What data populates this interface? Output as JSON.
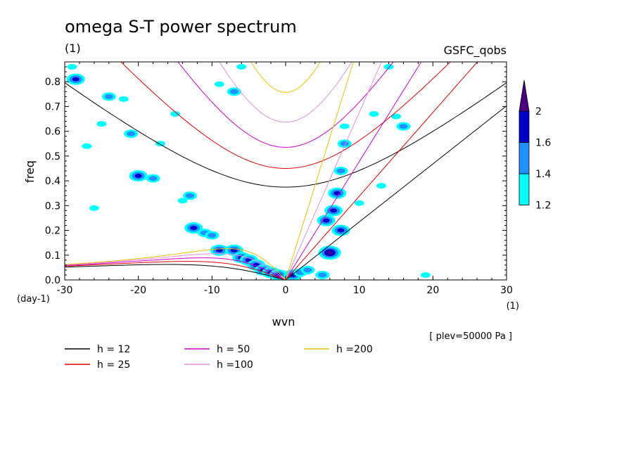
{
  "chart_data": {
    "type": "contour",
    "title": "omega S-T power spectrum",
    "subtitle": "(1)",
    "source_label": "GSFC_qobs",
    "xlabel": "wvn",
    "ylabel": "freq",
    "x_unit_label": "(1)",
    "y_unit_label": "(day-1)",
    "xlim": [
      -30,
      30
    ],
    "ylim": [
      0,
      0.88
    ],
    "x_ticks": [
      -30,
      -20,
      -10,
      0,
      10,
      20,
      30
    ],
    "x_tick_labels": [
      "-30",
      "-20",
      "-10",
      "0",
      "10",
      "20",
      "30"
    ],
    "y_ticks": [
      0,
      0.1,
      0.2,
      0.3,
      0.4,
      0.5,
      0.6,
      0.7,
      0.8
    ],
    "y_tick_labels": [
      "0.0",
      "0.1",
      "0.2",
      "0.3",
      "0.4",
      "0.5",
      "0.6",
      "0.7",
      "0.8"
    ],
    "annotation": "[ plev=50000 Pa ]",
    "colorbar": {
      "levels": [
        1.2,
        1.4,
        1.6,
        2
      ],
      "labels": [
        "1.2",
        "1.4",
        "1.6",
        "2"
      ],
      "colors": [
        "#00ffff",
        "#1e90ff",
        "#0000cd",
        "#4b0082"
      ]
    },
    "dispersion_curves": [
      {
        "label": "h = 12",
        "h": 12,
        "color": "#000000"
      },
      {
        "label": "h = 25",
        "h": 25,
        "color": "#e00000"
      },
      {
        "label": "h = 50",
        "h": 50,
        "color": "#d000d0"
      },
      {
        "label": "h =100",
        "h": 100,
        "color": "#e090e0"
      },
      {
        "label": "h =200",
        "h": 200,
        "color": "#f0c000"
      }
    ],
    "power_patches": [
      {
        "x": -29,
        "y": 0.86,
        "level": 1
      },
      {
        "x": -28.5,
        "y": 0.81,
        "level": 3
      },
      {
        "x": -25,
        "y": 0.63,
        "level": 1
      },
      {
        "x": -24,
        "y": 0.74,
        "level": 2
      },
      {
        "x": -22,
        "y": 0.73,
        "level": 1
      },
      {
        "x": -21,
        "y": 0.59,
        "level": 2
      },
      {
        "x": -20,
        "y": 0.42,
        "level": 3
      },
      {
        "x": -18,
        "y": 0.41,
        "level": 2
      },
      {
        "x": -17,
        "y": 0.55,
        "level": 1
      },
      {
        "x": -15,
        "y": 0.67,
        "level": 1
      },
      {
        "x": -14,
        "y": 0.32,
        "level": 1
      },
      {
        "x": -13,
        "y": 0.34,
        "level": 2
      },
      {
        "x": -12.5,
        "y": 0.21,
        "level": 3
      },
      {
        "x": -11,
        "y": 0.19,
        "level": 2
      },
      {
        "x": -10,
        "y": 0.18,
        "level": 2
      },
      {
        "x": -9,
        "y": 0.12,
        "level": 3
      },
      {
        "x": -7,
        "y": 0.12,
        "level": 3
      },
      {
        "x": -6,
        "y": 0.09,
        "level": 3
      },
      {
        "x": -5,
        "y": 0.08,
        "level": 3
      },
      {
        "x": -4,
        "y": 0.06,
        "level": 3
      },
      {
        "x": -3,
        "y": 0.04,
        "level": 3
      },
      {
        "x": -2,
        "y": 0.03,
        "level": 3
      },
      {
        "x": -1,
        "y": 0.02,
        "level": 3
      },
      {
        "x": 1,
        "y": 0.02,
        "level": 3
      },
      {
        "x": 2,
        "y": 0.03,
        "level": 2
      },
      {
        "x": 3,
        "y": 0.04,
        "level": 2
      },
      {
        "x": 5,
        "y": 0.02,
        "level": 2
      },
      {
        "x": 5.5,
        "y": 0.24,
        "level": 3
      },
      {
        "x": 6,
        "y": 0.11,
        "level": 4
      },
      {
        "x": 6.5,
        "y": 0.28,
        "level": 3
      },
      {
        "x": 7,
        "y": 0.35,
        "level": 3
      },
      {
        "x": 7.5,
        "y": 0.2,
        "level": 3
      },
      {
        "x": 7.5,
        "y": 0.44,
        "level": 2
      },
      {
        "x": 8,
        "y": 0.55,
        "level": 2
      },
      {
        "x": 8,
        "y": 0.62,
        "level": 1
      },
      {
        "x": 12,
        "y": 0.67,
        "level": 1
      },
      {
        "x": 15,
        "y": 0.66,
        "level": 1
      },
      {
        "x": 16,
        "y": 0.62,
        "level": 2
      },
      {
        "x": 13,
        "y": 0.38,
        "level": 1
      },
      {
        "x": 10,
        "y": 0.31,
        "level": 1
      },
      {
        "x": -9,
        "y": 0.79,
        "level": 1
      },
      {
        "x": -7,
        "y": 0.76,
        "level": 2
      },
      {
        "x": -6,
        "y": 0.86,
        "level": 1
      },
      {
        "x": 14,
        "y": 0.86,
        "level": 1
      },
      {
        "x": 19,
        "y": 0.02,
        "level": 1
      },
      {
        "x": -26,
        "y": 0.29,
        "level": 1
      },
      {
        "x": -27,
        "y": 0.54,
        "level": 1
      }
    ]
  }
}
